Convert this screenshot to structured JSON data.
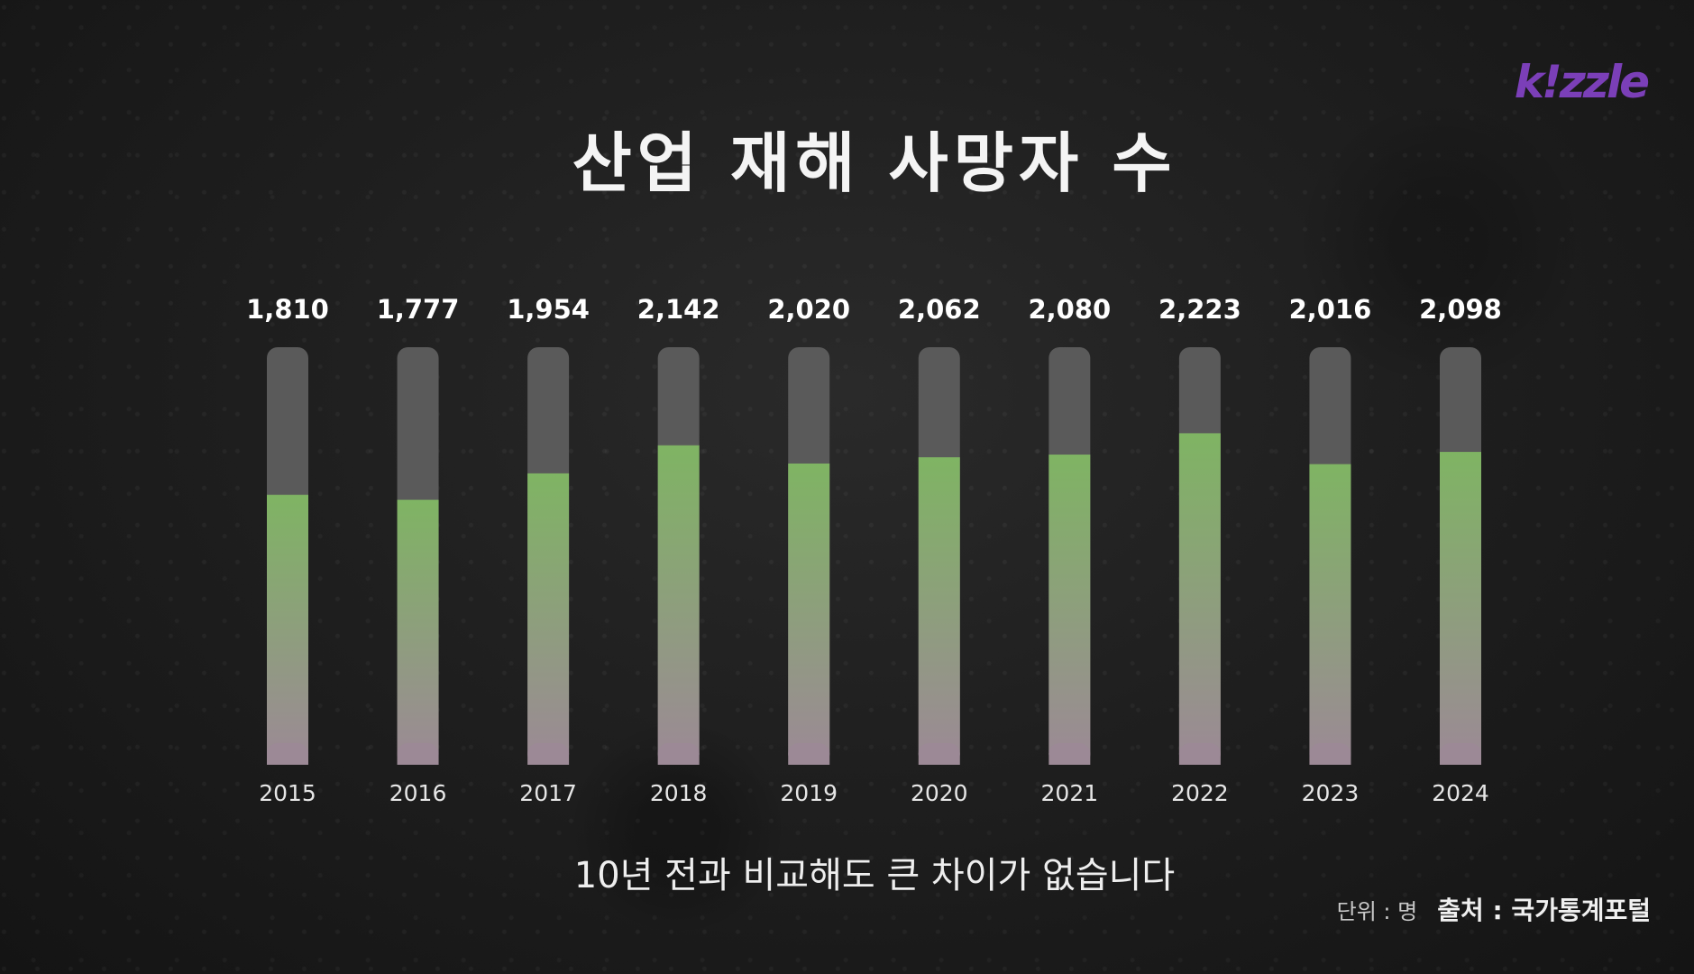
{
  "brand": {
    "logo_text": "k!zzle",
    "logo_color": "#7b3fb8"
  },
  "title": "산업 재해 사망자 수",
  "subtitle": "10년 전과 비교해도 큰 차이가 없습니다",
  "footer": {
    "unit": "단위 : 명",
    "source": "출처 : 국가통계포털"
  },
  "colors": {
    "bar_track": "#5a5a5a",
    "bar_fill_top": "#7fb463",
    "bar_fill_bottom": "#9c8996",
    "value_label": "#ffffff",
    "year_label": "#e6e6e6"
  },
  "chart_data": {
    "type": "bar",
    "categories": [
      "2015",
      "2016",
      "2017",
      "2018",
      "2019",
      "2020",
      "2021",
      "2022",
      "2023",
      "2024"
    ],
    "values": [
      1810,
      1777,
      1954,
      2142,
      2020,
      2062,
      2080,
      2223,
      2016,
      2098
    ],
    "value_labels": [
      "1,810",
      "1,777",
      "1,954",
      "2,142",
      "2,020",
      "2,062",
      "2,080",
      "2,223",
      "2,016",
      "2,098"
    ],
    "title": "산업 재해 사망자 수",
    "xlabel": "",
    "ylabel": "",
    "unit": "명",
    "grid": false,
    "legend": "none"
  }
}
